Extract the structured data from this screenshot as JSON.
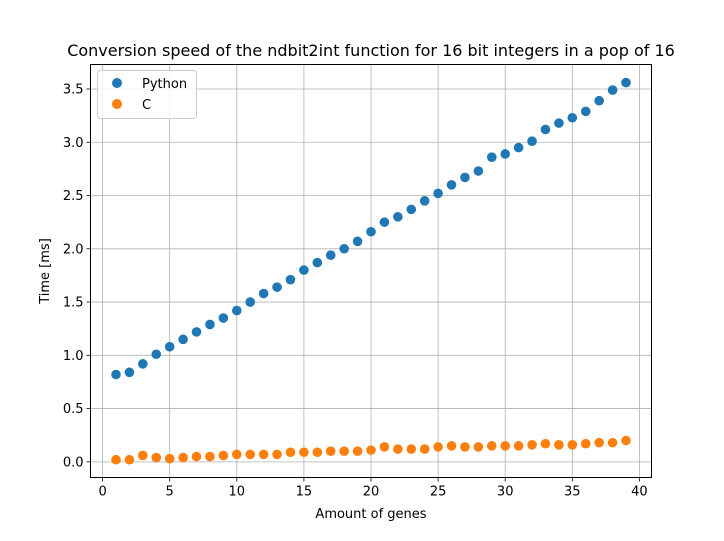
{
  "chart_data": {
    "type": "scatter",
    "title": "Conversion speed of the ndbit2int function for 16 bit integers in a pop of 16",
    "xlabel": "Amount of genes",
    "ylabel": "Time [ms]",
    "xlim": [
      -0.9,
      40.9
    ],
    "ylim": [
      -0.147,
      3.73
    ],
    "xticks": [
      0,
      5,
      10,
      15,
      20,
      25,
      30,
      35,
      40
    ],
    "yticks": [
      0.0,
      0.5,
      1.0,
      1.5,
      2.0,
      2.5,
      3.0,
      3.5
    ],
    "xtick_labels": [
      "0",
      "5",
      "10",
      "15",
      "20",
      "25",
      "30",
      "35",
      "40"
    ],
    "ytick_labels": [
      "0.0",
      "0.5",
      "1.0",
      "1.5",
      "2.0",
      "2.5",
      "3.0",
      "3.5"
    ],
    "grid": true,
    "legend_position": "top-left",
    "x": [
      1,
      2,
      3,
      4,
      5,
      6,
      7,
      8,
      9,
      10,
      11,
      12,
      13,
      14,
      15,
      16,
      17,
      18,
      19,
      20,
      21,
      22,
      23,
      24,
      25,
      26,
      27,
      28,
      29,
      30,
      31,
      32,
      33,
      34,
      35,
      36,
      37,
      38,
      39
    ],
    "series": [
      {
        "name": "Python",
        "color": "#1f77b4",
        "values": [
          0.82,
          0.84,
          0.92,
          1.01,
          1.08,
          1.15,
          1.22,
          1.29,
          1.35,
          1.42,
          1.5,
          1.58,
          1.64,
          1.71,
          1.8,
          1.87,
          1.94,
          2.0,
          2.07,
          2.16,
          2.25,
          2.3,
          2.37,
          2.45,
          2.52,
          2.6,
          2.67,
          2.73,
          2.86,
          2.89,
          2.95,
          3.01,
          3.12,
          3.18,
          3.23,
          3.29,
          3.39,
          3.49,
          3.56
        ]
      },
      {
        "name": "C",
        "color": "#ff7f0e",
        "values": [
          0.02,
          0.02,
          0.06,
          0.04,
          0.03,
          0.04,
          0.05,
          0.05,
          0.06,
          0.07,
          0.07,
          0.07,
          0.07,
          0.09,
          0.09,
          0.09,
          0.1,
          0.1,
          0.1,
          0.11,
          0.14,
          0.12,
          0.12,
          0.12,
          0.14,
          0.15,
          0.14,
          0.14,
          0.15,
          0.15,
          0.15,
          0.16,
          0.17,
          0.16,
          0.16,
          0.17,
          0.18,
          0.18,
          0.2
        ]
      }
    ]
  }
}
